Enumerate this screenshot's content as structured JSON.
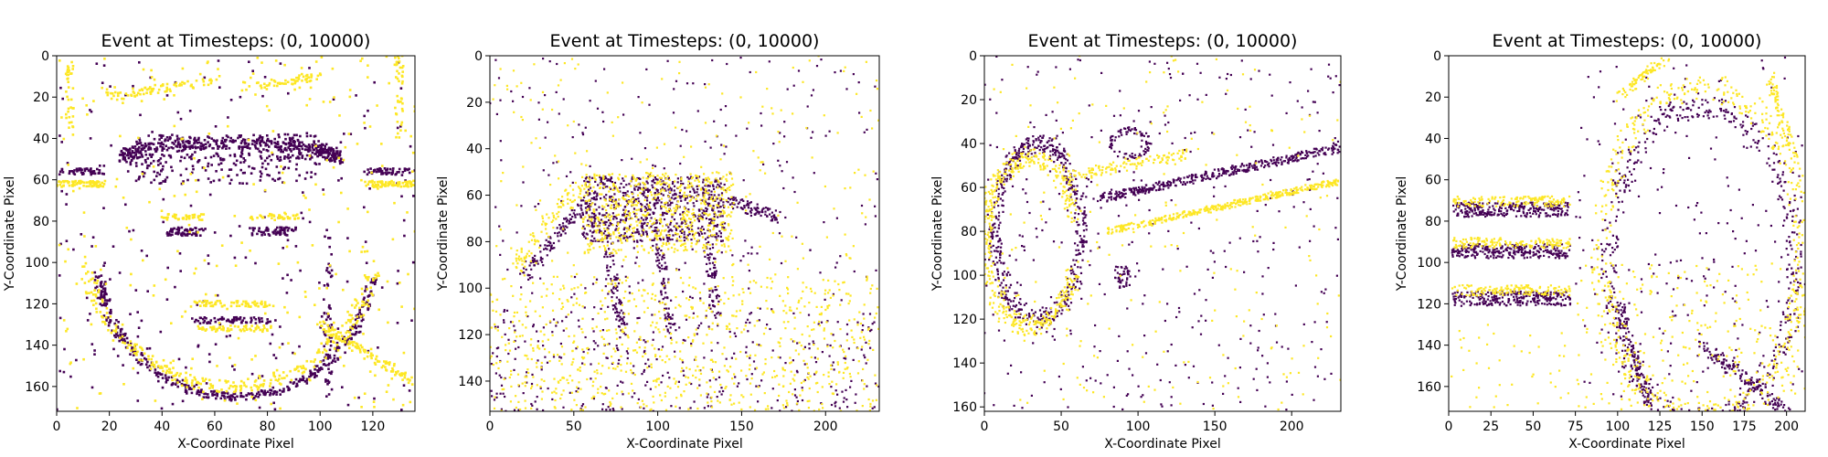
{
  "chart_data": [
    {
      "type": "scatter",
      "title": "Event at Timesteps: (0, 10000)",
      "xlabel": "X-Coordinate Pixel",
      "ylabel": "Y-Coordinate Pixel",
      "xlim": [
        0,
        136
      ],
      "ylim": [
        172,
        0
      ],
      "xticks": [
        0,
        20,
        40,
        60,
        80,
        100,
        120
      ],
      "yticks": [
        0,
        20,
        40,
        60,
        80,
        100,
        120,
        140,
        160
      ],
      "legend": "none",
      "grid": false,
      "subject": "face",
      "series": [
        {
          "polarity": "negative",
          "color": "#440154"
        },
        {
          "polarity": "positive",
          "color": "#fde725"
        }
      ]
    },
    {
      "type": "scatter",
      "title": "Event at Timesteps: (0, 10000)",
      "xlabel": "X-Coordinate Pixel",
      "ylabel": "Y-Coordinate Pixel",
      "xlim": [
        0,
        232
      ],
      "ylim": [
        153,
        0
      ],
      "xticks": [
        0,
        50,
        100,
        150,
        200
      ],
      "yticks": [
        0,
        20,
        40,
        60,
        80,
        100,
        120,
        140
      ],
      "legend": "none",
      "grid": false,
      "subject": "leopard",
      "series": [
        {
          "polarity": "negative",
          "color": "#440154"
        },
        {
          "polarity": "positive",
          "color": "#fde725"
        }
      ]
    },
    {
      "type": "scatter",
      "title": "Event at Timesteps: (0, 10000)",
      "xlabel": "X-Coordinate Pixel",
      "ylabel": "Y-Coordinate Pixel",
      "xlim": [
        0,
        232
      ],
      "ylim": [
        162,
        0
      ],
      "xticks": [
        0,
        50,
        100,
        150,
        200
      ],
      "yticks": [
        0,
        20,
        40,
        60,
        80,
        100,
        120,
        140,
        160
      ],
      "legend": "none",
      "grid": false,
      "subject": "guitar",
      "series": [
        {
          "polarity": "negative",
          "color": "#440154"
        },
        {
          "polarity": "positive",
          "color": "#fde725"
        }
      ]
    },
    {
      "type": "scatter",
      "title": "Event at Timesteps: (0, 10000)",
      "xlabel": "X-Coordinate Pixel",
      "ylabel": "Y-Coordinate Pixel",
      "xlim": [
        0,
        211
      ],
      "ylim": [
        172,
        0
      ],
      "xticks": [
        0,
        25,
        50,
        75,
        100,
        125,
        150,
        175,
        200
      ],
      "yticks": [
        0,
        20,
        40,
        60,
        80,
        100,
        120,
        140,
        160
      ],
      "legend": "none",
      "grid": false,
      "subject": "text-and-figure",
      "series": [
        {
          "polarity": "negative",
          "color": "#440154"
        },
        {
          "polarity": "positive",
          "color": "#fde725"
        }
      ]
    }
  ]
}
